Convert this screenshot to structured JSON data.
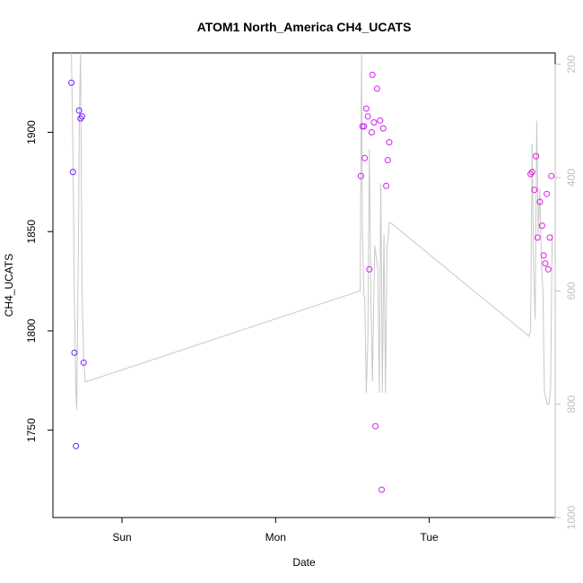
{
  "chart_data": {
    "type": "scatter",
    "title": "ATOM1 North_America CH4_UCATS",
    "xlabel": "Date",
    "ylabel": "CH4_UCATS",
    "x_ticks": [
      "Sun",
      "Mon",
      "Tue"
    ],
    "y_ticks": [
      1750,
      1800,
      1850,
      1900
    ],
    "y2_ticks": [
      200,
      400,
      600,
      800,
      1000
    ],
    "xlim": [
      -0.45,
      2.82
    ],
    "ylim": [
      1706,
      1940
    ],
    "y2lim": [
      1000,
      180
    ],
    "x_unit": "days since Sun 00:00",
    "points": [
      {
        "x": -0.33,
        "y": 1925,
        "color": "#6a1bff"
      },
      {
        "x": -0.32,
        "y": 1880,
        "color": "#6a1bff"
      },
      {
        "x": -0.31,
        "y": 1789,
        "color": "#6a1bff"
      },
      {
        "x": -0.3,
        "y": 1742,
        "color": "#6a1bff"
      },
      {
        "x": -0.28,
        "y": 1911,
        "color": "#7a1cff"
      },
      {
        "x": -0.27,
        "y": 1907,
        "color": "#7a1cff"
      },
      {
        "x": -0.26,
        "y": 1908,
        "color": "#7a1cff"
      },
      {
        "x": -0.25,
        "y": 1784,
        "color": "#7a1cff"
      },
      {
        "x": 1.555,
        "y": 1878,
        "color": "#d31cf5"
      },
      {
        "x": 1.565,
        "y": 1903,
        "color": "#d31cf5"
      },
      {
        "x": 1.575,
        "y": 1903,
        "color": "#d31cf5"
      },
      {
        "x": 1.58,
        "y": 1887,
        "color": "#d31cf5"
      },
      {
        "x": 1.59,
        "y": 1912,
        "color": "#d31cf5"
      },
      {
        "x": 1.6,
        "y": 1908,
        "color": "#d31cf5"
      },
      {
        "x": 1.61,
        "y": 1831,
        "color": "#d31cf5"
      },
      {
        "x": 1.625,
        "y": 1900,
        "color": "#d31cf5"
      },
      {
        "x": 1.63,
        "y": 1929,
        "color": "#d31cf5"
      },
      {
        "x": 1.64,
        "y": 1905,
        "color": "#d31cf5"
      },
      {
        "x": 1.65,
        "y": 1752,
        "color": "#d31cf5"
      },
      {
        "x": 1.66,
        "y": 1922,
        "color": "#d31cf5"
      },
      {
        "x": 1.68,
        "y": 1906,
        "color": "#d31cf5"
      },
      {
        "x": 1.69,
        "y": 1720,
        "color": "#d31cf5"
      },
      {
        "x": 1.7,
        "y": 1902,
        "color": "#d31cf5"
      },
      {
        "x": 1.72,
        "y": 1873,
        "color": "#d31cf5"
      },
      {
        "x": 1.73,
        "y": 1886,
        "color": "#d31cf5"
      },
      {
        "x": 1.74,
        "y": 1895,
        "color": "#d31cf5"
      },
      {
        "x": 2.66,
        "y": 1879,
        "color": "#e11ae6"
      },
      {
        "x": 2.67,
        "y": 1880,
        "color": "#e11ae6"
      },
      {
        "x": 2.685,
        "y": 1871,
        "color": "#e11ae6"
      },
      {
        "x": 2.695,
        "y": 1888,
        "color": "#e11ae6"
      },
      {
        "x": 2.705,
        "y": 1847,
        "color": "#e11ae6"
      },
      {
        "x": 2.72,
        "y": 1865,
        "color": "#e11ae6"
      },
      {
        "x": 2.735,
        "y": 1853,
        "color": "#e11ae6"
      },
      {
        "x": 2.745,
        "y": 1838,
        "color": "#e11ae6"
      },
      {
        "x": 2.755,
        "y": 1834,
        "color": "#e11ae6"
      },
      {
        "x": 2.765,
        "y": 1869,
        "color": "#e11ae6"
      },
      {
        "x": 2.775,
        "y": 1831,
        "color": "#e11ae6"
      },
      {
        "x": 2.785,
        "y": 1847,
        "color": "#e11ae6"
      },
      {
        "x": 2.795,
        "y": 1878,
        "color": "#e11ae6"
      }
    ],
    "altitude_series": {
      "color": "#c8c8c8",
      "x": [
        -0.33,
        -0.32,
        -0.31,
        -0.3,
        -0.295,
        -0.285,
        -0.278,
        -0.27,
        -0.26,
        -0.25,
        -0.24,
        -0.23,
        1.55,
        1.56,
        1.565,
        1.575,
        1.58,
        1.59,
        1.6,
        1.61,
        1.62,
        1.63,
        1.645,
        1.655,
        1.665,
        1.675,
        1.685,
        1.695,
        1.705,
        1.715,
        1.725,
        1.735,
        1.74,
        1.75,
        2.65,
        2.66,
        2.67,
        2.68,
        2.69,
        2.7,
        2.71,
        2.72,
        2.73,
        2.74,
        2.75,
        2.76,
        2.77,
        2.78,
        2.79,
        2.8
      ],
      "y": [
        170,
        350,
        620,
        780,
        810,
        540,
        290,
        170,
        600,
        720,
        760,
        760,
        600,
        180,
        500,
        610,
        610,
        780,
        690,
        350,
        610,
        760,
        520,
        540,
        560,
        780,
        410,
        780,
        500,
        780,
        520,
        500,
        480,
        480,
        680,
        670,
        340,
        560,
        650,
        300,
        500,
        420,
        550,
        600,
        780,
        790,
        800,
        800,
        770,
        500
      ]
    }
  }
}
